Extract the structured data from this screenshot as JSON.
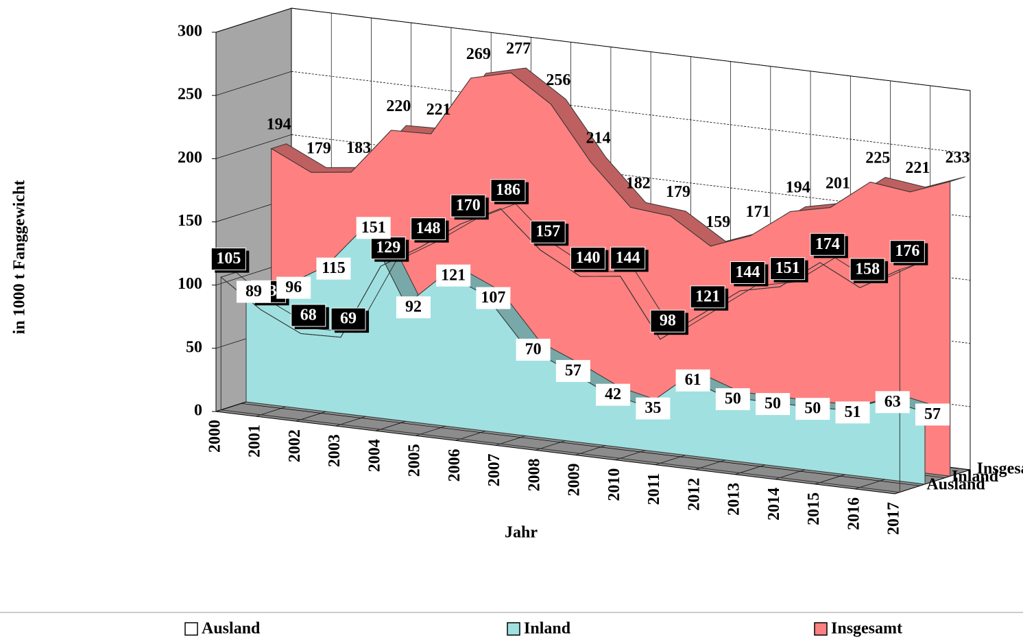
{
  "chart_data": {
    "type": "area3d",
    "x_label": "Jahr",
    "y_label": "in 1000 t Fanggewicht",
    "categories": [
      "2000",
      "2001",
      "2002",
      "2003",
      "2004",
      "2005",
      "2006",
      "2007",
      "2008",
      "2009",
      "2010",
      "2011",
      "2012",
      "2013",
      "2014",
      "2015",
      "2016",
      "2017"
    ],
    "series": [
      {
        "name": "Ausland",
        "color": "#ffffff",
        "values": [
          105,
          83,
          68,
          69,
          129,
          148,
          170,
          186,
          157,
          140,
          144,
          98,
          121,
          144,
          151,
          174,
          158,
          176
        ]
      },
      {
        "name": "Inland",
        "color": "#a0e0e0",
        "values": [
          89,
          96,
          115,
          151,
          92,
          121,
          107,
          70,
          57,
          42,
          35,
          61,
          50,
          50,
          50,
          51,
          63,
          57
        ]
      },
      {
        "name": "Insgesamt",
        "color": "#ff8080",
        "values": [
          194,
          179,
          183,
          220,
          221,
          269,
          277,
          256,
          214,
          182,
          179,
          159,
          171,
          194,
          201,
          225,
          221,
          233
        ]
      }
    ],
    "ylim": [
      0,
      300
    ],
    "yticks": [
      0,
      50,
      100,
      150,
      200,
      250,
      300
    ],
    "grid": true,
    "legend": "bottom"
  }
}
